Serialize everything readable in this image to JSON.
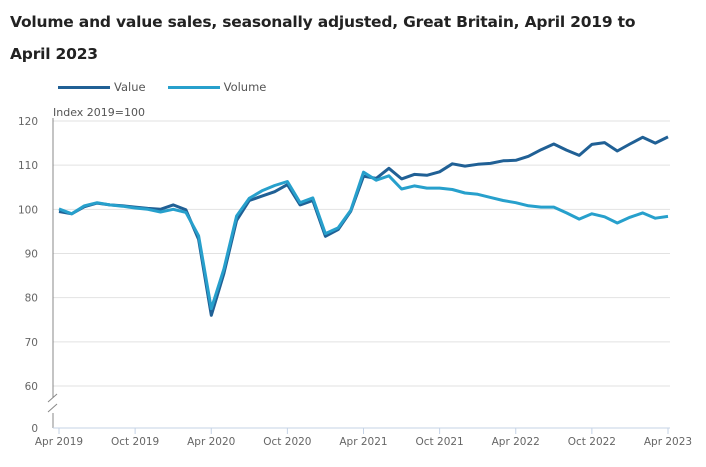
{
  "chart_data": {
    "type": "line",
    "title": "Volume and value sales, seasonally adjusted, Great Britain, April 2019 to April 2023",
    "ylabel": "Index 2019=100",
    "xlabel": "",
    "ylim": [
      60,
      120
    ],
    "y_axis_broken": true,
    "y_ticks": [
      120,
      110,
      100,
      90,
      80,
      70,
      60,
      0
    ],
    "y_tick_labels": [
      "120",
      "110",
      "100",
      "90",
      "80",
      "70",
      "60",
      "0"
    ],
    "x_tick_labels": [
      "Apr 2019",
      "Oct 2019",
      "Apr 2020",
      "Oct 2020",
      "Apr 2021",
      "Oct 2021",
      "Apr 2022",
      "Oct 2022",
      "Apr 2023"
    ],
    "x_tick_indices": [
      0,
      6,
      12,
      18,
      24,
      30,
      36,
      42,
      48
    ],
    "grid": true,
    "legend_position": "top-left",
    "x": [
      "Apr 2019",
      "May 2019",
      "Jun 2019",
      "Jul 2019",
      "Aug 2019",
      "Sep 2019",
      "Oct 2019",
      "Nov 2019",
      "Dec 2019",
      "Jan 2020",
      "Feb 2020",
      "Mar 2020",
      "Apr 2020",
      "May 2020",
      "Jun 2020",
      "Jul 2020",
      "Aug 2020",
      "Sep 2020",
      "Oct 2020",
      "Nov 2020",
      "Dec 2020",
      "Jan 2021",
      "Feb 2021",
      "Mar 2021",
      "Apr 2021",
      "May 2021",
      "Jun 2021",
      "Jul 2021",
      "Aug 2021",
      "Sep 2021",
      "Oct 2021",
      "Nov 2021",
      "Dec 2021",
      "Jan 2022",
      "Feb 2022",
      "Mar 2022",
      "Apr 2022",
      "May 2022",
      "Jun 2022",
      "Jul 2022",
      "Aug 2022",
      "Sep 2022",
      "Oct 2022",
      "Nov 2022",
      "Dec 2022",
      "Jan 2023",
      "Feb 2023",
      "Mar 2023",
      "Apr 2023"
    ],
    "series": [
      {
        "name": "Value",
        "color": "#206095",
        "values": [
          99.5,
          99.0,
          100.6,
          101.4,
          101.0,
          100.8,
          100.5,
          100.2,
          100.0,
          101.0,
          99.9,
          93.2,
          76.0,
          85.5,
          97.5,
          102.0,
          103.0,
          104.0,
          105.6,
          101.0,
          102.0,
          93.9,
          95.4,
          99.6,
          107.5,
          107.0,
          109.3,
          106.9,
          107.9,
          107.7,
          108.5,
          110.3,
          109.8,
          110.2,
          110.4,
          111.0,
          111.1,
          112.0,
          113.5,
          114.8,
          113.4,
          112.2,
          114.7,
          115.1,
          113.2,
          114.8,
          116.3,
          115.0,
          116.4
        ]
      },
      {
        "name": "Volume",
        "color": "#27a0cc",
        "values": [
          100.1,
          99.0,
          100.8,
          101.5,
          101.0,
          100.7,
          100.3,
          100.0,
          99.4,
          100.0,
          99.3,
          94.0,
          77.5,
          86.5,
          98.5,
          102.5,
          104.2,
          105.4,
          106.3,
          101.5,
          102.6,
          94.5,
          95.8,
          99.8,
          108.4,
          106.6,
          107.6,
          104.6,
          105.3,
          104.8,
          104.8,
          104.5,
          103.7,
          103.4,
          102.7,
          102.0,
          101.5,
          100.8,
          100.5,
          100.5,
          99.2,
          97.8,
          99.0,
          98.3,
          96.9,
          98.2,
          99.2,
          98.0,
          98.4
        ]
      }
    ]
  }
}
